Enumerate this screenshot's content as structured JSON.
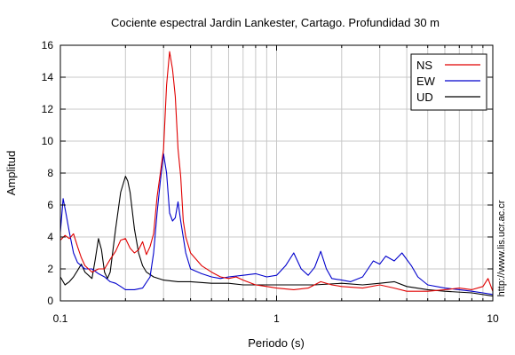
{
  "chart_data": {
    "type": "line",
    "title": "Cociente espectral Jardin Lankester, Cartago. Profundidad 30 m",
    "xlabel": "Periodo (s)",
    "ylabel": "Amplitud",
    "xscale": "log",
    "xlim": [
      0.1,
      10
    ],
    "ylim": [
      0,
      16
    ],
    "yticks": [
      0,
      2,
      4,
      6,
      8,
      10,
      12,
      14,
      16
    ],
    "xtick_labels": [
      {
        "value": 0.1,
        "label": "0.1"
      },
      {
        "value": 1,
        "label": "1"
      },
      {
        "value": 10,
        "label": "10"
      }
    ],
    "grid": true,
    "legend_position": "top-right",
    "watermark": "http://www.lis.ucr.ac.cr",
    "series": [
      {
        "name": "NS",
        "color": "#e00000",
        "x": [
          0.1,
          0.105,
          0.11,
          0.115,
          0.12,
          0.125,
          0.13,
          0.14,
          0.15,
          0.16,
          0.17,
          0.18,
          0.19,
          0.2,
          0.21,
          0.22,
          0.23,
          0.24,
          0.25,
          0.26,
          0.27,
          0.28,
          0.29,
          0.3,
          0.31,
          0.32,
          0.33,
          0.34,
          0.35,
          0.36,
          0.37,
          0.38,
          0.4,
          0.45,
          0.5,
          0.55,
          0.6,
          0.65,
          0.7,
          0.8,
          0.9,
          1.0,
          1.2,
          1.4,
          1.6,
          1.8,
          2.0,
          2.5,
          3.0,
          3.5,
          4.0,
          5.0,
          6.0,
          7.0,
          8.0,
          9.0,
          9.5,
          10.0
        ],
        "y": [
          3.8,
          4.1,
          3.9,
          4.2,
          3.4,
          2.7,
          2.2,
          1.8,
          2.0,
          2.0,
          2.6,
          3.1,
          3.8,
          3.9,
          3.3,
          3.0,
          3.2,
          3.7,
          2.9,
          3.4,
          4.2,
          6.5,
          8.0,
          9.5,
          13.5,
          15.6,
          14.5,
          12.8,
          9.5,
          7.8,
          5.0,
          4.0,
          3.0,
          2.2,
          1.8,
          1.5,
          1.4,
          1.5,
          1.3,
          1.0,
          0.9,
          0.8,
          0.7,
          0.8,
          1.2,
          1.0,
          0.9,
          0.8,
          1.0,
          0.8,
          0.6,
          0.6,
          0.7,
          0.8,
          0.7,
          0.9,
          1.4,
          0.6
        ]
      },
      {
        "name": "EW",
        "color": "#0000cc",
        "x": [
          0.1,
          0.103,
          0.106,
          0.11,
          0.115,
          0.12,
          0.13,
          0.14,
          0.15,
          0.16,
          0.17,
          0.18,
          0.19,
          0.2,
          0.22,
          0.24,
          0.26,
          0.27,
          0.28,
          0.29,
          0.3,
          0.31,
          0.32,
          0.33,
          0.34,
          0.35,
          0.36,
          0.38,
          0.4,
          0.45,
          0.5,
          0.55,
          0.6,
          0.7,
          0.8,
          0.9,
          1.0,
          1.1,
          1.2,
          1.3,
          1.4,
          1.5,
          1.6,
          1.7,
          1.8,
          2.0,
          2.2,
          2.5,
          2.8,
          3.0,
          3.2,
          3.5,
          3.8,
          4.2,
          4.5,
          5.0,
          6.0,
          7.0,
          8.0,
          9.0,
          10.0
        ],
        "y": [
          4.3,
          6.4,
          5.5,
          4.3,
          3.0,
          2.4,
          2.0,
          2.0,
          1.7,
          1.5,
          1.2,
          1.1,
          0.9,
          0.7,
          0.7,
          0.8,
          1.5,
          3.0,
          5.5,
          7.5,
          9.2,
          8.0,
          5.5,
          5.0,
          5.2,
          6.2,
          5.0,
          3.0,
          2.0,
          1.7,
          1.5,
          1.4,
          1.5,
          1.6,
          1.7,
          1.5,
          1.6,
          2.2,
          3.0,
          2.0,
          1.6,
          2.1,
          3.1,
          2.0,
          1.4,
          1.3,
          1.2,
          1.5,
          2.5,
          2.3,
          2.8,
          2.5,
          3.0,
          2.2,
          1.5,
          1.0,
          0.8,
          0.7,
          0.6,
          0.5,
          0.4
        ]
      },
      {
        "name": "UD",
        "color": "#000000",
        "x": [
          0.1,
          0.105,
          0.11,
          0.115,
          0.12,
          0.125,
          0.13,
          0.14,
          0.145,
          0.15,
          0.155,
          0.16,
          0.165,
          0.17,
          0.18,
          0.19,
          0.2,
          0.205,
          0.21,
          0.22,
          0.23,
          0.24,
          0.25,
          0.27,
          0.3,
          0.35,
          0.4,
          0.5,
          0.6,
          0.7,
          0.8,
          1.0,
          1.2,
          1.5,
          2.0,
          2.5,
          3.0,
          3.5,
          4.0,
          5.0,
          6.0,
          8.0,
          10.0
        ],
        "y": [
          1.5,
          1.0,
          1.2,
          1.5,
          1.9,
          2.3,
          1.8,
          1.4,
          2.6,
          3.9,
          3.2,
          1.8,
          1.4,
          1.8,
          4.5,
          6.8,
          7.8,
          7.5,
          6.8,
          4.5,
          3.0,
          2.2,
          1.8,
          1.5,
          1.3,
          1.2,
          1.2,
          1.1,
          1.1,
          1.0,
          1.0,
          1.0,
          1.0,
          1.0,
          1.1,
          1.0,
          1.1,
          1.2,
          0.9,
          0.7,
          0.6,
          0.5,
          0.3
        ]
      }
    ]
  }
}
